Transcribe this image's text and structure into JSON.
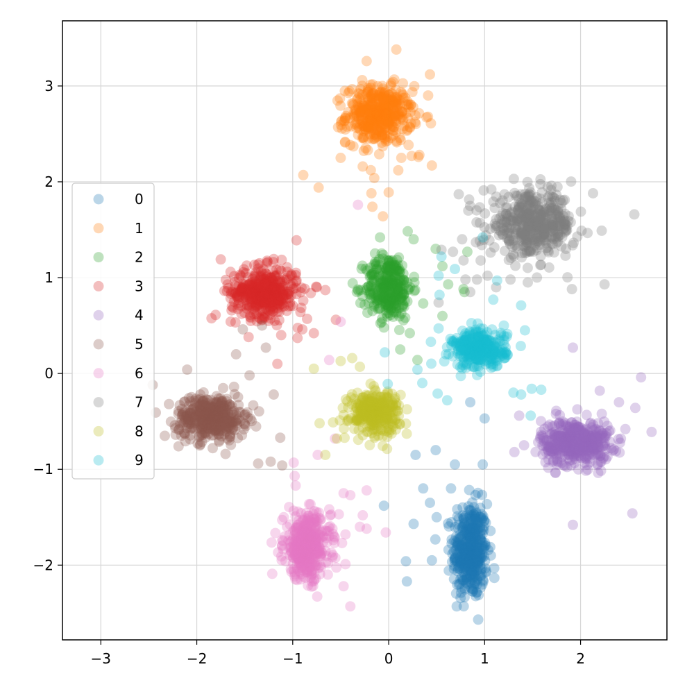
{
  "chart_data": {
    "type": "scatter",
    "title": "",
    "xlabel": "",
    "ylabel": "",
    "xlim": [
      -3.4,
      2.9
    ],
    "ylim": [
      -2.78,
      3.68
    ],
    "xticks": [
      -3,
      -2,
      -1,
      0,
      1,
      2
    ],
    "xtick_labels": [
      "−3",
      "−2",
      "−1",
      "0",
      "1",
      "2"
    ],
    "yticks": [
      -2,
      -1,
      0,
      1,
      2,
      3
    ],
    "ytick_labels": [
      "−2",
      "−1",
      "0",
      "1",
      "2",
      "3"
    ],
    "grid": true,
    "legend_position": "center-left",
    "point_alpha": 0.3,
    "series": [
      {
        "name": "0",
        "color": "#1f77b4",
        "center": [
          0.85,
          -1.85
        ],
        "spread": [
          0.09,
          0.25
        ],
        "n": 420,
        "points": [
          [
            0.26,
            -1.57
          ],
          [
            0.18,
            -1.96
          ],
          [
            0.43,
            -1.35
          ],
          [
            0.5,
            -1.5
          ],
          [
            0.36,
            -1.2
          ],
          [
            0.45,
            -1.95
          ],
          [
            -0.05,
            -1.38
          ],
          [
            0.28,
            -0.85
          ],
          [
            0.49,
            -0.8
          ],
          [
            0.98,
            -0.95
          ],
          [
            1.0,
            -0.47
          ],
          [
            0.85,
            -0.3
          ],
          [
            0.65,
            -1.2
          ],
          [
            0.19,
            -2.17
          ],
          [
            0.69,
            -0.95
          ]
        ]
      },
      {
        "name": "1",
        "color": "#ff7f0e",
        "center": [
          -0.1,
          2.7
        ],
        "spread": [
          0.17,
          0.15
        ],
        "n": 420,
        "points": [
          [
            -0.89,
            2.07
          ],
          [
            -0.73,
            1.94
          ],
          [
            -0.15,
            2.04
          ],
          [
            -0.18,
            1.88
          ],
          [
            -0.17,
            1.74
          ],
          [
            -0.06,
            1.64
          ],
          [
            0.0,
            1.89
          ],
          [
            -0.27,
            2.16
          ],
          [
            0.1,
            2.12
          ],
          [
            0.31,
            2.26
          ],
          [
            0.45,
            2.17
          ],
          [
            0.08,
            3.38
          ],
          [
            -0.23,
            3.26
          ],
          [
            0.43,
            3.12
          ],
          [
            0.23,
            2.8
          ],
          [
            0.44,
            2.61
          ],
          [
            -0.5,
            2.25
          ],
          [
            0.24,
            2.27
          ],
          [
            0.32,
            2.28
          ]
        ]
      },
      {
        "name": "2",
        "color": "#2ca02c",
        "center": [
          0.0,
          0.9
        ],
        "spread": [
          0.12,
          0.17
        ],
        "n": 300,
        "points": [
          [
            -0.09,
            1.42
          ],
          [
            0.26,
            1.4
          ],
          [
            0.49,
            1.3
          ],
          [
            0.82,
            1.27
          ],
          [
            0.78,
            0.88
          ],
          [
            0.62,
            0.93
          ],
          [
            0.56,
            1.12
          ],
          [
            0.79,
            0.85
          ],
          [
            0.56,
            0.6
          ],
          [
            0.36,
            0.73
          ],
          [
            0.22,
            0.42
          ],
          [
            0.12,
            0.25
          ],
          [
            -0.05,
            0.48
          ],
          [
            0.3,
            0.14
          ]
        ]
      },
      {
        "name": "3",
        "color": "#d62728",
        "center": [
          -1.3,
          0.85
        ],
        "spread": [
          0.17,
          0.13
        ],
        "n": 420,
        "points": [
          [
            -0.96,
            1.39
          ],
          [
            -0.96,
            0.97
          ],
          [
            -0.75,
            0.9
          ],
          [
            -0.89,
            0.76
          ],
          [
            -0.92,
            0.64
          ],
          [
            -0.85,
            0.57
          ],
          [
            -0.78,
            0.42
          ],
          [
            -0.55,
            0.56
          ],
          [
            -1.12,
            0.4
          ],
          [
            -1.16,
            0.1
          ],
          [
            -0.9,
            0.46
          ],
          [
            -1.46,
            0.38
          ],
          [
            -1.75,
            1.19
          ],
          [
            -0.66,
            0.87
          ],
          [
            -0.95,
            0.37
          ]
        ]
      },
      {
        "name": "4",
        "color": "#9467bd",
        "center": [
          1.95,
          -0.72
        ],
        "spread": [
          0.18,
          0.12
        ],
        "n": 420,
        "points": [
          [
            1.92,
            0.27
          ],
          [
            2.63,
            -0.04
          ],
          [
            2.74,
            -0.61
          ],
          [
            2.57,
            -0.36
          ],
          [
            2.2,
            -0.18
          ],
          [
            2.54,
            -1.46
          ],
          [
            1.92,
            -1.58
          ],
          [
            1.36,
            -0.44
          ],
          [
            1.31,
            -0.82
          ],
          [
            2.4,
            -0.3
          ]
        ]
      },
      {
        "name": "5",
        "color": "#8c564b",
        "center": [
          -1.85,
          -0.46
        ],
        "spread": [
          0.18,
          0.11
        ],
        "n": 420,
        "points": [
          [
            -2.46,
            -0.12
          ],
          [
            -2.29,
            -0.32
          ],
          [
            -2.1,
            0.04
          ],
          [
            -2.19,
            -0.76
          ],
          [
            -1.59,
            0.2
          ],
          [
            -1.36,
            -0.94
          ],
          [
            -1.23,
            -0.92
          ],
          [
            -1.11,
            -0.96
          ],
          [
            -1.13,
            -0.67
          ],
          [
            -1.28,
            0.27
          ],
          [
            -1.45,
            -0.02
          ],
          [
            -1.7,
            -0.84
          ],
          [
            -1.52,
            0.46
          ],
          [
            -1.32,
            0.5
          ]
        ]
      },
      {
        "name": "6",
        "color": "#e377c2",
        "center": [
          -0.85,
          -1.8
        ],
        "spread": [
          0.12,
          0.17
        ],
        "n": 420,
        "points": [
          [
            -0.98,
            -1.07
          ],
          [
            -0.97,
            -1.17
          ],
          [
            -0.99,
            -0.93
          ],
          [
            -0.47,
            -1.25
          ],
          [
            -0.52,
            -1.47
          ],
          [
            -0.45,
            -1.68
          ],
          [
            -0.27,
            -1.48
          ],
          [
            -0.3,
            -1.6
          ],
          [
            -0.23,
            -1.62
          ],
          [
            -0.03,
            -1.66
          ],
          [
            -0.23,
            -1.22
          ],
          [
            -0.4,
            -1.27
          ],
          [
            -0.32,
            1.76
          ],
          [
            -0.5,
            0.54
          ],
          [
            -0.62,
            0.14
          ],
          [
            -0.56,
            -0.68
          ],
          [
            -0.74,
            -0.85
          ],
          [
            -0.4,
            -2.43
          ],
          [
            -0.45,
            -1.99
          ],
          [
            -0.47,
            -2.22
          ]
        ]
      },
      {
        "name": "7",
        "color": "#7f7f7f",
        "center": [
          1.5,
          1.55
        ],
        "spread": [
          0.22,
          0.16
        ],
        "n": 450,
        "points": [
          [
            0.73,
            1.87
          ],
          [
            0.99,
            1.91
          ],
          [
            0.83,
            1.7
          ],
          [
            0.67,
            1.27
          ],
          [
            1.03,
            1.02
          ],
          [
            1.12,
            0.9
          ],
          [
            0.92,
            0.98
          ],
          [
            0.55,
            1.29
          ],
          [
            0.78,
            1.18
          ],
          [
            0.8,
            0.98
          ],
          [
            0.52,
            0.74
          ],
          [
            0.85,
            0.85
          ],
          [
            2.22,
            1.49
          ],
          [
            2.25,
            0.93
          ],
          [
            2.56,
            1.66
          ],
          [
            1.91,
            0.88
          ],
          [
            2.13,
            1.88
          ],
          [
            1.27,
            0.98
          ],
          [
            1.45,
            0.95
          ],
          [
            0.97,
            1.34
          ]
        ]
      },
      {
        "name": "8",
        "color": "#bcbd22",
        "center": [
          -0.15,
          -0.4
        ],
        "spread": [
          0.13,
          0.11
        ],
        "n": 300,
        "points": [
          [
            -0.78,
            0.05
          ],
          [
            -0.5,
            0.13
          ],
          [
            -0.72,
            -0.52
          ],
          [
            -0.54,
            -0.68
          ],
          [
            -0.66,
            -0.85
          ],
          [
            -0.58,
            -0.51
          ],
          [
            -0.38,
            0.16
          ],
          [
            -0.3,
            0.07
          ]
        ]
      },
      {
        "name": "9",
        "color": "#17becf",
        "center": [
          0.95,
          0.25
        ],
        "spread": [
          0.14,
          0.1
        ],
        "n": 300,
        "points": [
          [
            0.52,
            1.02
          ],
          [
            0.55,
            1.22
          ],
          [
            0.69,
            1.09
          ],
          [
            0.53,
            0.82
          ],
          [
            0.52,
            0.47
          ],
          [
            0.44,
            0.33
          ],
          [
            0.98,
            1.42
          ],
          [
            1.13,
            0.97
          ],
          [
            1.09,
            0.77
          ],
          [
            1.38,
            0.71
          ],
          [
            1.2,
            0.5
          ],
          [
            1.42,
            0.45
          ],
          [
            0.3,
            0.04
          ],
          [
            -0.04,
            0.22
          ],
          [
            -0.01,
            -0.11
          ],
          [
            0.35,
            -0.1
          ],
          [
            0.61,
            -0.28
          ],
          [
            0.51,
            -0.21
          ],
          [
            1.48,
            -0.44
          ],
          [
            1.3,
            -0.2
          ],
          [
            1.38,
            -0.22
          ],
          [
            1.49,
            -0.16
          ],
          [
            1.59,
            -0.17
          ]
        ]
      }
    ]
  }
}
